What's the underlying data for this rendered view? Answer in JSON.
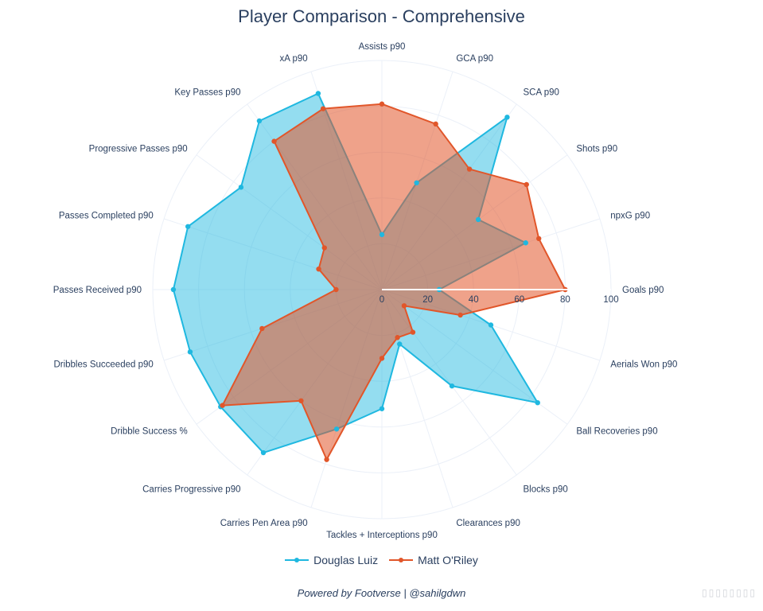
{
  "chart_data": {
    "type": "radar",
    "title": "Player Comparison - Comprehensive",
    "axes": [
      "Goals p90",
      "npxG p90",
      "Shots p90",
      "SCA p90",
      "GCA p90",
      "Assists p90",
      "xA p90",
      "Key Passes p90",
      "Progressive Passes p90",
      "Passes Completed p90",
      "Passes Received p90",
      "Dribbles Succeeded p90",
      "Dribble Success %",
      "Carries Progressive p90",
      "Carries Pen Area p90",
      "Tackles + Interceptions p90",
      "Clearances p90",
      "Blocks p90",
      "Ball Recoveries p90",
      "Aerials Won p90"
    ],
    "radial_ticks": [
      "0",
      "20",
      "40",
      "60",
      "80",
      "100"
    ],
    "radial_range": [
      0,
      100
    ],
    "grid": true,
    "legend_position": "bottom",
    "series": [
      {
        "name": "Douglas Luiz",
        "color": "#1fb8e0",
        "values": [
          25,
          66,
          52,
          93,
          49,
          24,
          90,
          91,
          76,
          89,
          91,
          88,
          87,
          88,
          64,
          52,
          25,
          52,
          84,
          50
        ]
      },
      {
        "name": "Matt O'Riley",
        "color": "#e1562a",
        "values": [
          80,
          72,
          78,
          65,
          76,
          81,
          83,
          80,
          31,
          29,
          20,
          55,
          86,
          60,
          78,
          30,
          22,
          23,
          12,
          36
        ]
      }
    ]
  },
  "footer": {
    "credit": "Powered by Footverse | @sahilgdwn",
    "brand_watermark": "▯▯▯▯▯▯▯▯"
  }
}
